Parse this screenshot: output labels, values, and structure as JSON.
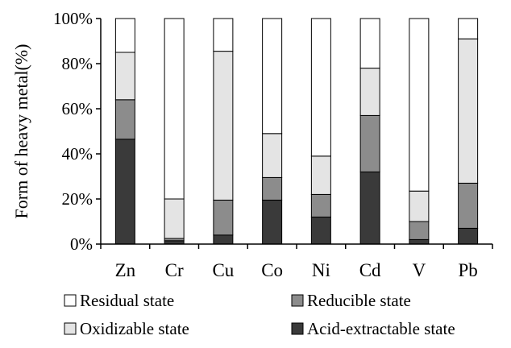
{
  "chart_data": {
    "type": "bar",
    "stacked": true,
    "ylabel": "Form of heavy metal(%)",
    "xlabel": "",
    "ylim": [
      0,
      100
    ],
    "yticks": [
      "0%",
      "20%",
      "40%",
      "60%",
      "80%",
      "100%"
    ],
    "ytick_values": [
      0,
      20,
      40,
      60,
      80,
      100
    ],
    "grid": false,
    "legend_position": "bottom",
    "categories": [
      "Zn",
      "Cr",
      "Cu",
      "Co",
      "Ni",
      "Cd",
      "V",
      "Pb"
    ],
    "series": [
      {
        "name": "Acid-extractable state",
        "color": "#3a3a3a",
        "values": [
          46.5,
          1.5,
          4,
          19.5,
          12,
          32,
          2,
          7
        ]
      },
      {
        "name": "Reducible state",
        "color": "#8c8c8c",
        "values": [
          17.5,
          1,
          15.5,
          10,
          10,
          25,
          8,
          20
        ]
      },
      {
        "name": "Oxidizable state",
        "color": "#e4e4e4",
        "values": [
          21,
          17.5,
          66,
          19.5,
          17,
          21,
          13.5,
          64
        ]
      },
      {
        "name": "Residual state",
        "color": "#ffffff",
        "values": [
          15,
          80,
          14.5,
          51,
          61,
          22,
          76.5,
          9
        ]
      }
    ],
    "legend_order": [
      "Residual state",
      "Reducible state",
      "Oxidizable state",
      "Acid-extractable state"
    ]
  }
}
